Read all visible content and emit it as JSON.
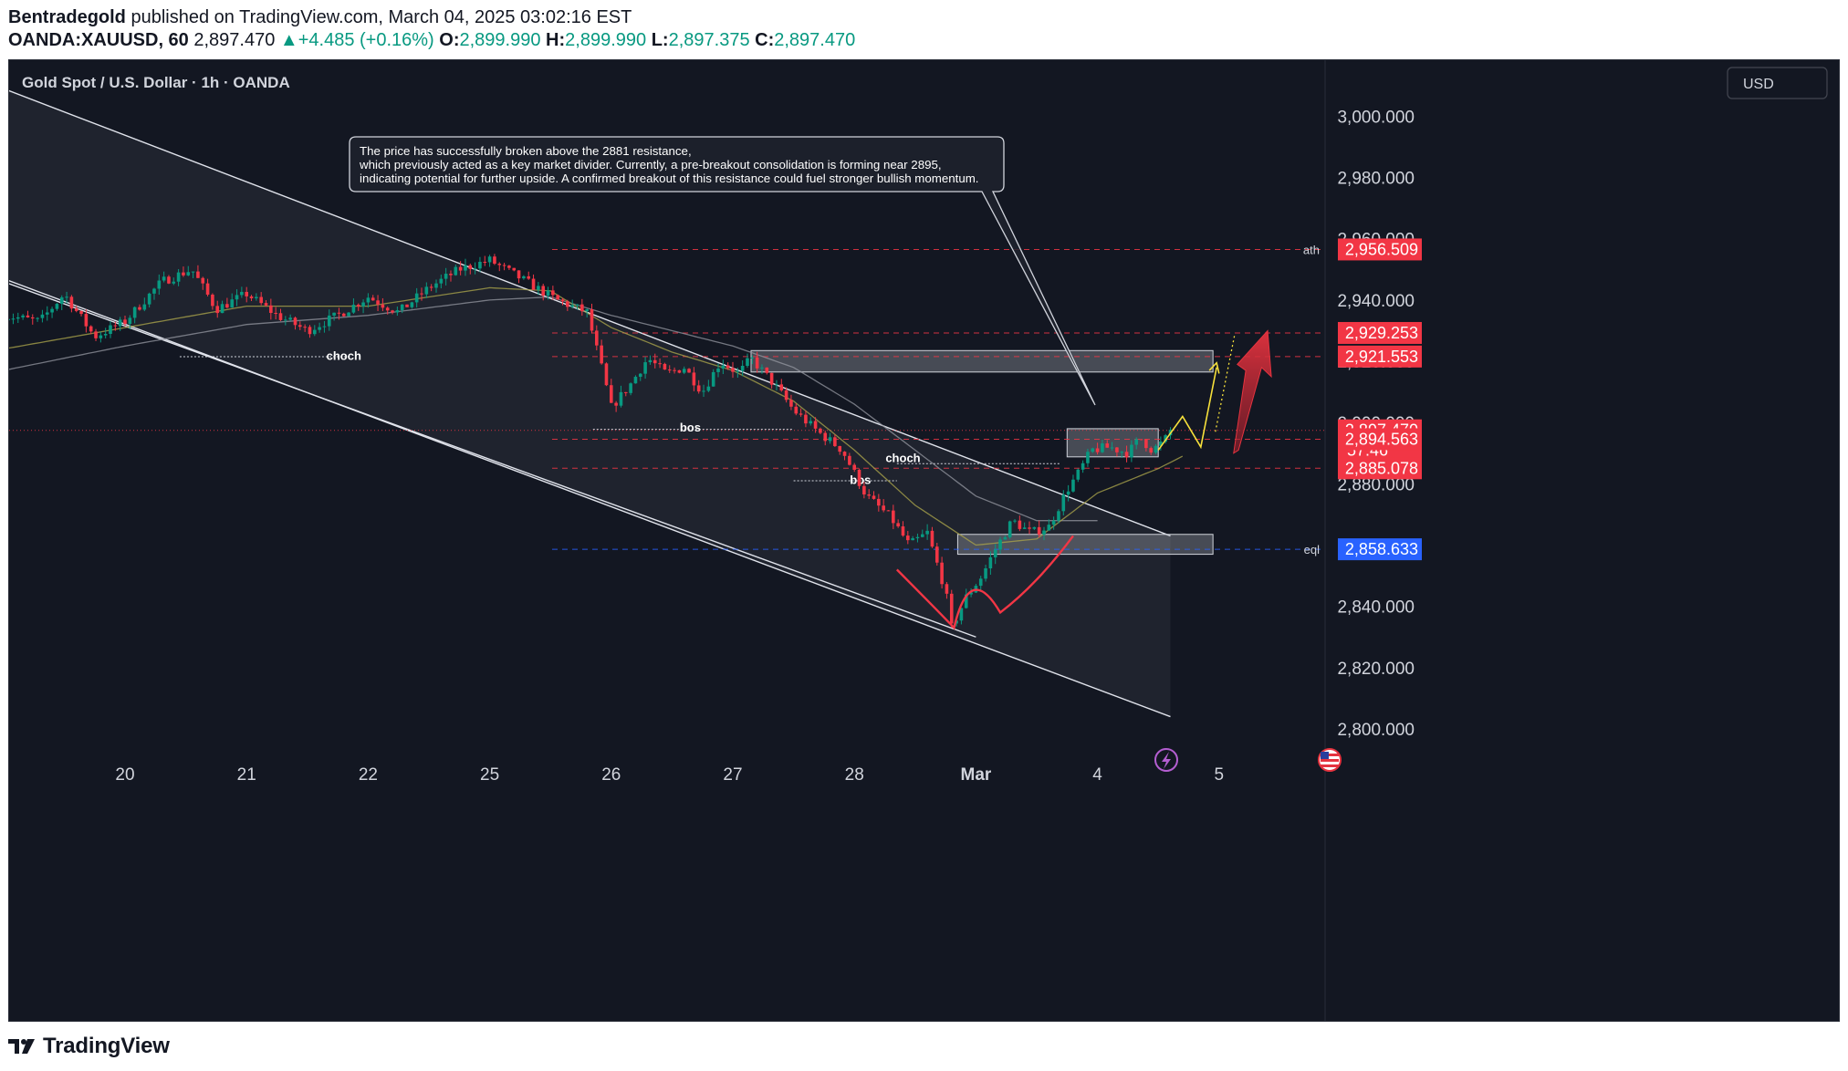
{
  "header": {
    "author": "Bentradegold",
    "published_text": "published on TradingView.com, March 04, 2025 03:02:16 EST",
    "symbol": "OANDA:XAUUSD, 60",
    "last": "2,897.470",
    "change": "+4.485 (+0.16%)",
    "o_label": "O:",
    "o_value": "2,899.990",
    "h_label": "H:",
    "h_value": "2,899.990",
    "l_label": "L:",
    "l_value": "2,897.375",
    "c_label": "C:",
    "c_value": "2,897.470"
  },
  "chart": {
    "legend_title": "Gold Spot / U.S. Dollar · 1h · OANDA",
    "currency_button": "USD",
    "annotation_lines": [
      "The price has successfully broken above the 2881 resistance,",
      "which previously acted as a key market divider. Currently, a pre-breakout consolidation is forming near 2895,",
      "indicating potential for further upside. A confirmed breakout of this resistance could fuel stronger bullish momentum."
    ],
    "structure_labels": [
      {
        "text": "choch",
        "x": 21.8,
        "y": 2922.0
      },
      {
        "text": "bos",
        "x": 24.65,
        "y": 2898.5
      },
      {
        "text": "bos",
        "x": 26.05,
        "y": 2881.5
      },
      {
        "text": "choch",
        "x": 26.4,
        "y": 2888.6
      }
    ],
    "level_labels": {
      "ath": "ath",
      "eql": "eql"
    },
    "colors": {
      "background": "#131722",
      "up": "#089981",
      "down": "#f23645",
      "price_tag": "#f23645",
      "eql_tag": "#2962ff",
      "arrow_yellow": "#f7e13b"
    },
    "icons": [
      "lightning-icon",
      "us-flag-icon"
    ]
  },
  "footer": {
    "brand": "TradingView"
  },
  "chart_data": {
    "type": "candlestick",
    "title": "Gold Spot / U.S. Dollar · 1h · OANDA",
    "ylim": [
      2795,
      3012
    ],
    "y_ticks": [
      "2,800.000",
      "2,820.000",
      "2,840.000",
      "2,860.000",
      "2,880.000",
      "2,900.000",
      "2,920.000",
      "2,940.000",
      "2,960.000",
      "2,980.000",
      "3,000.000"
    ],
    "x_ticks": [
      {
        "label": "20",
        "x": 20.0
      },
      {
        "label": "21",
        "x": 21.0
      },
      {
        "label": "22",
        "x": 22.0
      },
      {
        "label": "25",
        "x": 23.0
      },
      {
        "label": "26",
        "x": 24.0
      },
      {
        "label": "27",
        "x": 25.0
      },
      {
        "label": "28",
        "x": 26.0
      },
      {
        "label": "Mar",
        "x": 27.0
      },
      {
        "label": "4",
        "x": 28.0
      },
      {
        "label": "5",
        "x": 29.0
      }
    ],
    "price_path": [
      [
        19.0,
        2935
      ],
      [
        19.3,
        2933
      ],
      [
        19.5,
        2942
      ],
      [
        19.75,
        2928
      ],
      [
        20.0,
        2933
      ],
      [
        20.3,
        2946
      ],
      [
        20.55,
        2950
      ],
      [
        20.75,
        2937
      ],
      [
        21.0,
        2942
      ],
      [
        21.25,
        2935
      ],
      [
        21.5,
        2930
      ],
      [
        21.75,
        2935
      ],
      [
        22.0,
        2941
      ],
      [
        22.25,
        2936
      ],
      [
        22.5,
        2944
      ],
      [
        22.75,
        2950
      ],
      [
        23.0,
        2953
      ],
      [
        23.3,
        2946
      ],
      [
        23.55,
        2940
      ],
      [
        23.8,
        2936
      ],
      [
        23.92,
        2918
      ],
      [
        24.0,
        2905
      ],
      [
        24.15,
        2912
      ],
      [
        24.3,
        2921
      ],
      [
        24.45,
        2916
      ],
      [
        24.6,
        2918
      ],
      [
        24.75,
        2910
      ],
      [
        24.9,
        2920
      ],
      [
        25.05,
        2916
      ],
      [
        25.15,
        2921
      ],
      [
        25.35,
        2912
      ],
      [
        25.5,
        2904
      ],
      [
        25.7,
        2897
      ],
      [
        25.9,
        2891
      ],
      [
        26.1,
        2876
      ],
      [
        26.3,
        2869
      ],
      [
        26.45,
        2860
      ],
      [
        26.6,
        2864
      ],
      [
        26.75,
        2845
      ],
      [
        26.8,
        2833
      ],
      [
        26.92,
        2843
      ],
      [
        27.05,
        2850
      ],
      [
        27.15,
        2858
      ],
      [
        27.3,
        2868
      ],
      [
        27.45,
        2864
      ],
      [
        27.6,
        2866
      ],
      [
        27.75,
        2878
      ],
      [
        27.85,
        2884
      ],
      [
        27.95,
        2891
      ],
      [
        28.1,
        2892
      ],
      [
        28.25,
        2890
      ],
      [
        28.35,
        2895
      ],
      [
        28.45,
        2891
      ],
      [
        28.55,
        2894
      ],
      [
        28.6,
        2897.47
      ]
    ],
    "ema_fast": [
      [
        19.0,
        2924
      ],
      [
        20.0,
        2931
      ],
      [
        21.0,
        2938
      ],
      [
        22.0,
        2938
      ],
      [
        23.0,
        2944
      ],
      [
        23.5,
        2943
      ],
      [
        24.0,
        2931
      ],
      [
        24.5,
        2923
      ],
      [
        25.0,
        2917
      ],
      [
        25.5,
        2907
      ],
      [
        26.0,
        2891
      ],
      [
        26.5,
        2873
      ],
      [
        27.0,
        2860
      ],
      [
        27.5,
        2862
      ],
      [
        28.0,
        2877
      ],
      [
        28.5,
        2885
      ],
      [
        28.7,
        2889
      ]
    ],
    "ema_slow": [
      [
        19.0,
        2917
      ],
      [
        20.0,
        2925
      ],
      [
        21.0,
        2932
      ],
      [
        22.0,
        2935
      ],
      [
        23.0,
        2940
      ],
      [
        23.5,
        2941
      ],
      [
        24.0,
        2935
      ],
      [
        24.5,
        2930
      ],
      [
        25.0,
        2925
      ],
      [
        25.5,
        2918
      ],
      [
        26.0,
        2906
      ],
      [
        26.5,
        2891
      ],
      [
        27.0,
        2876
      ],
      [
        27.5,
        2868
      ],
      [
        28.0,
        2868
      ]
    ],
    "channel": {
      "upper": [
        [
          19.0,
          3009
        ],
        [
          28.6,
          2863
        ]
      ],
      "lower": [
        [
          19.0,
          2947
        ],
        [
          28.6,
          2804
        ]
      ],
      "mid_lower": [
        [
          19.0,
          2946
        ],
        [
          27.0,
          2830
        ]
      ]
    },
    "zones": [
      {
        "x0": 25.15,
        "x1": 28.95,
        "y0": 2916.5,
        "y1": 2923.5
      },
      {
        "x0": 26.85,
        "x1": 28.95,
        "y0": 2857.0,
        "y1": 2863.5
      },
      {
        "x0": 27.75,
        "x1": 28.5,
        "y0": 2888.8,
        "y1": 2898.0
      }
    ],
    "levels": [
      {
        "label": "ath",
        "value": 2956.509,
        "color": "#f23645"
      },
      {
        "label": "",
        "value": 2929.253,
        "color": "#f23645"
      },
      {
        "label": "",
        "value": 2921.553,
        "color": "#f23645"
      },
      {
        "label": "",
        "value": 2897.47,
        "color": "#f23645",
        "countdown": "57:46"
      },
      {
        "label": "",
        "value": 2894.563,
        "color": "#f23645"
      },
      {
        "label": "",
        "value": 2885.078,
        "color": "#f23645"
      },
      {
        "label": "eql",
        "value": 2858.633,
        "color": "#2962ff"
      }
    ]
  }
}
